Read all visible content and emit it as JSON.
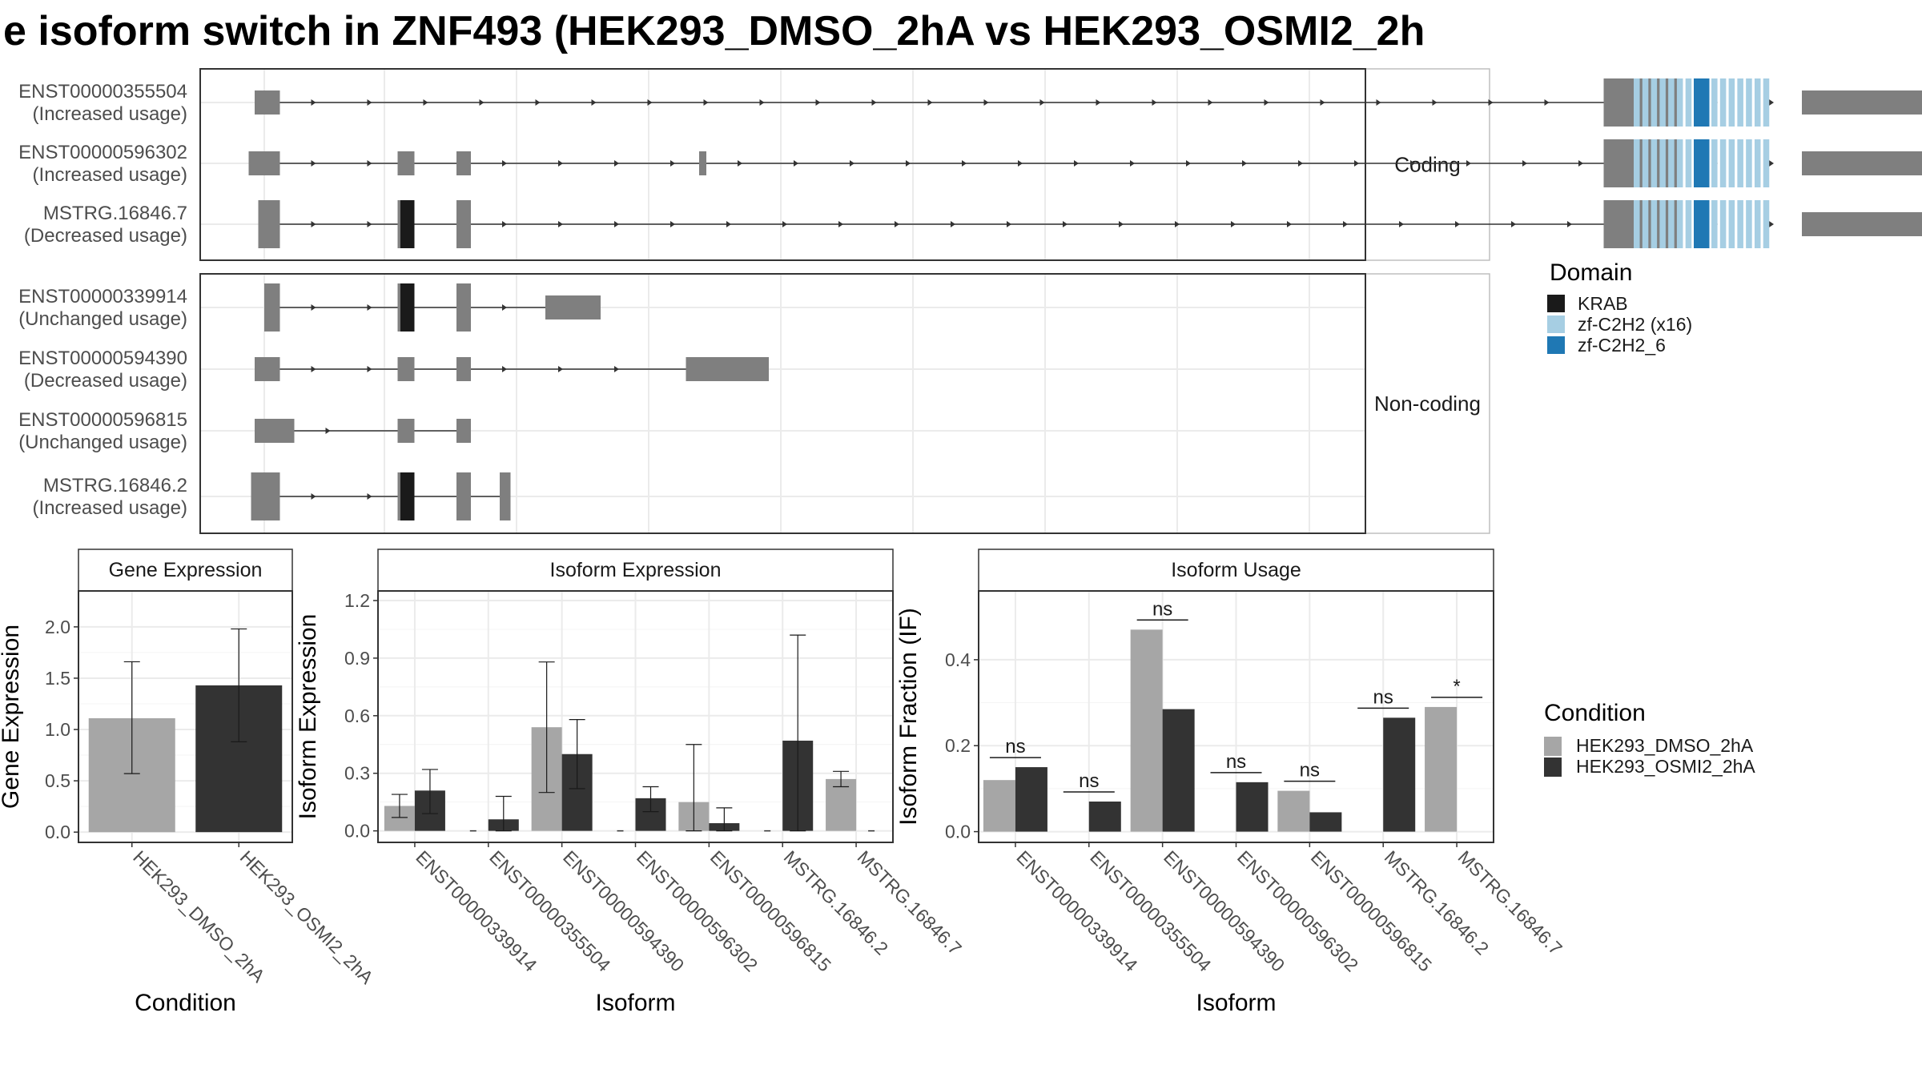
{
  "chart_data": [
    {
      "type": "transcript-structure",
      "title": "e isoform switch in ZNF493 (HEK293_DMSO_2hA vs HEK293_OSMI2_2h",
      "colors": {
        "exon": "#7f7f7f",
        "KRAB": "#1a1a1a",
        "zf-C2H2 (x16)": "#a6cee3",
        "zf-C2H2_6": "#1f78b4",
        "intron": "#333333"
      },
      "legend": {
        "title": "Domain",
        "placement": "right",
        "items": [
          "KRAB",
          "zf-C2H2 (x16)",
          "zf-C2H2_6"
        ]
      },
      "panels": [
        {
          "label": "Coding",
          "transcripts": [
            {
              "id": "ENST00000355504",
              "usage": "(Increased usage)",
              "intron": [
                12,
                1135
              ],
              "exons": [
                [
                  12,
                  33,
                  "utr"
                ],
                [
                  1135,
                  1200,
                  "cds"
                ],
                [
                  1300,
                  1400,
                  "utr"
                ]
              ],
              "domains": [
                [
                  1160,
                  1275,
                  "zf"
                ],
                [
                  1210,
                  1223,
                  "zf6"
                ]
              ]
            },
            {
              "id": "ENST00000596302",
              "usage": "(Increased usage)",
              "intron": [
                7,
                1135
              ],
              "exons": [
                [
                  7,
                  33,
                  "utr"
                ],
                [
                  131,
                  145,
                  "utr"
                ],
                [
                  180,
                  192,
                  "utr"
                ],
                [
                  382,
                  388,
                  "utr"
                ],
                [
                  1135,
                  1200,
                  "cds"
                ],
                [
                  1300,
                  1400,
                  "utr"
                ]
              ],
              "domains": [
                [
                  1160,
                  1275,
                  "zf"
                ],
                [
                  1210,
                  1223,
                  "zf6"
                ]
              ]
            },
            {
              "id": "MSTRG.16846.7",
              "usage": "(Decreased usage)",
              "intron": [
                15,
                1135
              ],
              "exons": [
                [
                  15,
                  33,
                  "cds"
                ],
                [
                  131,
                  145,
                  "cds"
                ],
                [
                  180,
                  192,
                  "cds"
                ],
                [
                  1135,
                  1200,
                  "cds"
                ],
                [
                  1300,
                  1400,
                  "utr"
                ]
              ],
              "domains": [
                [
                  132,
                  145,
                  "krab"
                ],
                [
                  1160,
                  1275,
                  "zf"
                ],
                [
                  1210,
                  1223,
                  "zf6"
                ]
              ]
            }
          ]
        },
        {
          "label": "Non-coding",
          "transcripts": [
            {
              "id": "ENST00000339914",
              "usage": "(Unchanged usage)",
              "intron": [
                20,
                260
              ],
              "exons": [
                [
                  20,
                  33,
                  "cds"
                ],
                [
                  131,
                  145,
                  "cds"
                ],
                [
                  180,
                  192,
                  "cds"
                ],
                [
                  254,
                  300,
                  "utr"
                ]
              ],
              "domains": [
                [
                  132,
                  145,
                  "krab"
                ]
              ]
            },
            {
              "id": "ENST00000594390",
              "usage": "(Decreased usage)",
              "intron": [
                12,
                415
              ],
              "exons": [
                [
                  12,
                  33,
                  "utr"
                ],
                [
                  131,
                  145,
                  "utr"
                ],
                [
                  180,
                  192,
                  "utr"
                ],
                [
                  371,
                  440,
                  "utr"
                ]
              ],
              "domains": []
            },
            {
              "id": "ENST00000596815",
              "usage": "(Unchanged usage)",
              "intron": [
                12,
                192
              ],
              "exons": [
                [
                  12,
                  45,
                  "utr"
                ],
                [
                  131,
                  145,
                  "utr"
                ],
                [
                  180,
                  192,
                  "utr"
                ]
              ],
              "domains": []
            },
            {
              "id": "MSTRG.16846.2",
              "usage": "(Increased usage)",
              "intron": [
                9,
                225
              ],
              "exons": [
                [
                  9,
                  33,
                  "cds"
                ],
                [
                  131,
                  145,
                  "cds"
                ],
                [
                  180,
                  192,
                  "cds"
                ],
                [
                  216,
                  225,
                  "cds"
                ]
              ],
              "domains": [
                [
                  132,
                  145,
                  "krab"
                ]
              ]
            }
          ]
        }
      ]
    },
    {
      "type": "bar",
      "title": "Gene Expression",
      "xlabel": "Condition",
      "ylabel": "Gene Expression",
      "categories": [
        "HEK293_DMSO_2hA",
        "HEK293_OSMI2_2hA"
      ],
      "values": [
        1.11,
        1.43
      ],
      "err_low": [
        0.57,
        0.88
      ],
      "err_high": [
        1.66,
        1.98
      ],
      "colors": [
        "#a6a6a6",
        "#333333"
      ],
      "ylim": [
        -0.1,
        2.35
      ],
      "yticks": [
        0.0,
        0.5,
        1.0,
        1.5,
        2.0
      ],
      "ytick_labels": [
        "0.0",
        "0.5",
        "1.0",
        "1.5",
        "2.0"
      ]
    },
    {
      "type": "bar",
      "title": "Isoform Expression",
      "xlabel": "Isoform",
      "ylabel": "Isoform Expression",
      "categories": [
        "ENST00000339914",
        "ENST00000355504",
        "ENST00000594390",
        "ENST00000596302",
        "ENST00000596815",
        "MSTRG.16846.2",
        "MSTRG.16846.7"
      ],
      "ylim": [
        -0.06,
        1.25
      ],
      "yticks": [
        0.0,
        0.3,
        0.6,
        0.9,
        1.2
      ],
      "ytick_labels": [
        "0.0",
        "0.3",
        "0.6",
        "0.9",
        "1.2"
      ],
      "series": [
        {
          "name": "HEK293_DMSO_2hA",
          "color": "#a6a6a6",
          "values": [
            0.13,
            0.0,
            0.54,
            0.0,
            0.15,
            0.0,
            0.27
          ],
          "err_low": [
            0.07,
            0.0,
            0.2,
            0.0,
            0.0,
            0.0,
            0.23
          ],
          "err_high": [
            0.19,
            0.0,
            0.88,
            0.0,
            0.45,
            0.0,
            0.31
          ]
        },
        {
          "name": "HEK293_OSMI2_2hA",
          "color": "#333333",
          "values": [
            0.21,
            0.06,
            0.4,
            0.17,
            0.04,
            0.47,
            0.0
          ],
          "err_low": [
            0.09,
            0.0,
            0.22,
            0.1,
            0.0,
            0.0,
            0.0
          ],
          "err_high": [
            0.32,
            0.18,
            0.58,
            0.23,
            0.12,
            1.02,
            0.0
          ]
        }
      ]
    },
    {
      "type": "bar",
      "title": "Isoform Usage",
      "xlabel": "Isoform",
      "ylabel": "Isoform Fraction (IF)",
      "categories": [
        "ENST00000339914",
        "ENST00000355504",
        "ENST00000594390",
        "ENST00000596302",
        "ENST00000596815",
        "MSTRG.16846.2",
        "MSTRG.16846.7"
      ],
      "ylim": [
        -0.025,
        0.56
      ],
      "yticks": [
        0.0,
        0.2,
        0.4
      ],
      "ytick_labels": [
        "0.0",
        "0.2",
        "0.4"
      ],
      "series": [
        {
          "name": "HEK293_DMSO_2hA",
          "color": "#a6a6a6",
          "values": [
            0.12,
            0.0,
            0.47,
            0.0,
            0.095,
            0.0,
            0.29
          ]
        },
        {
          "name": "HEK293_OSMI2_2hA",
          "color": "#333333",
          "values": [
            0.15,
            0.07,
            0.285,
            0.115,
            0.045,
            0.265,
            0.0
          ]
        }
      ],
      "significance": [
        "ns",
        "ns",
        "ns",
        "ns",
        "ns",
        "ns",
        "*"
      ]
    }
  ],
  "condition_legend": {
    "title": "Condition",
    "placement": "right",
    "items": [
      {
        "name": "HEK293_DMSO_2hA",
        "color": "#a6a6a6"
      },
      {
        "name": "HEK293_OSMI2_2hA",
        "color": "#333333"
      }
    ]
  }
}
